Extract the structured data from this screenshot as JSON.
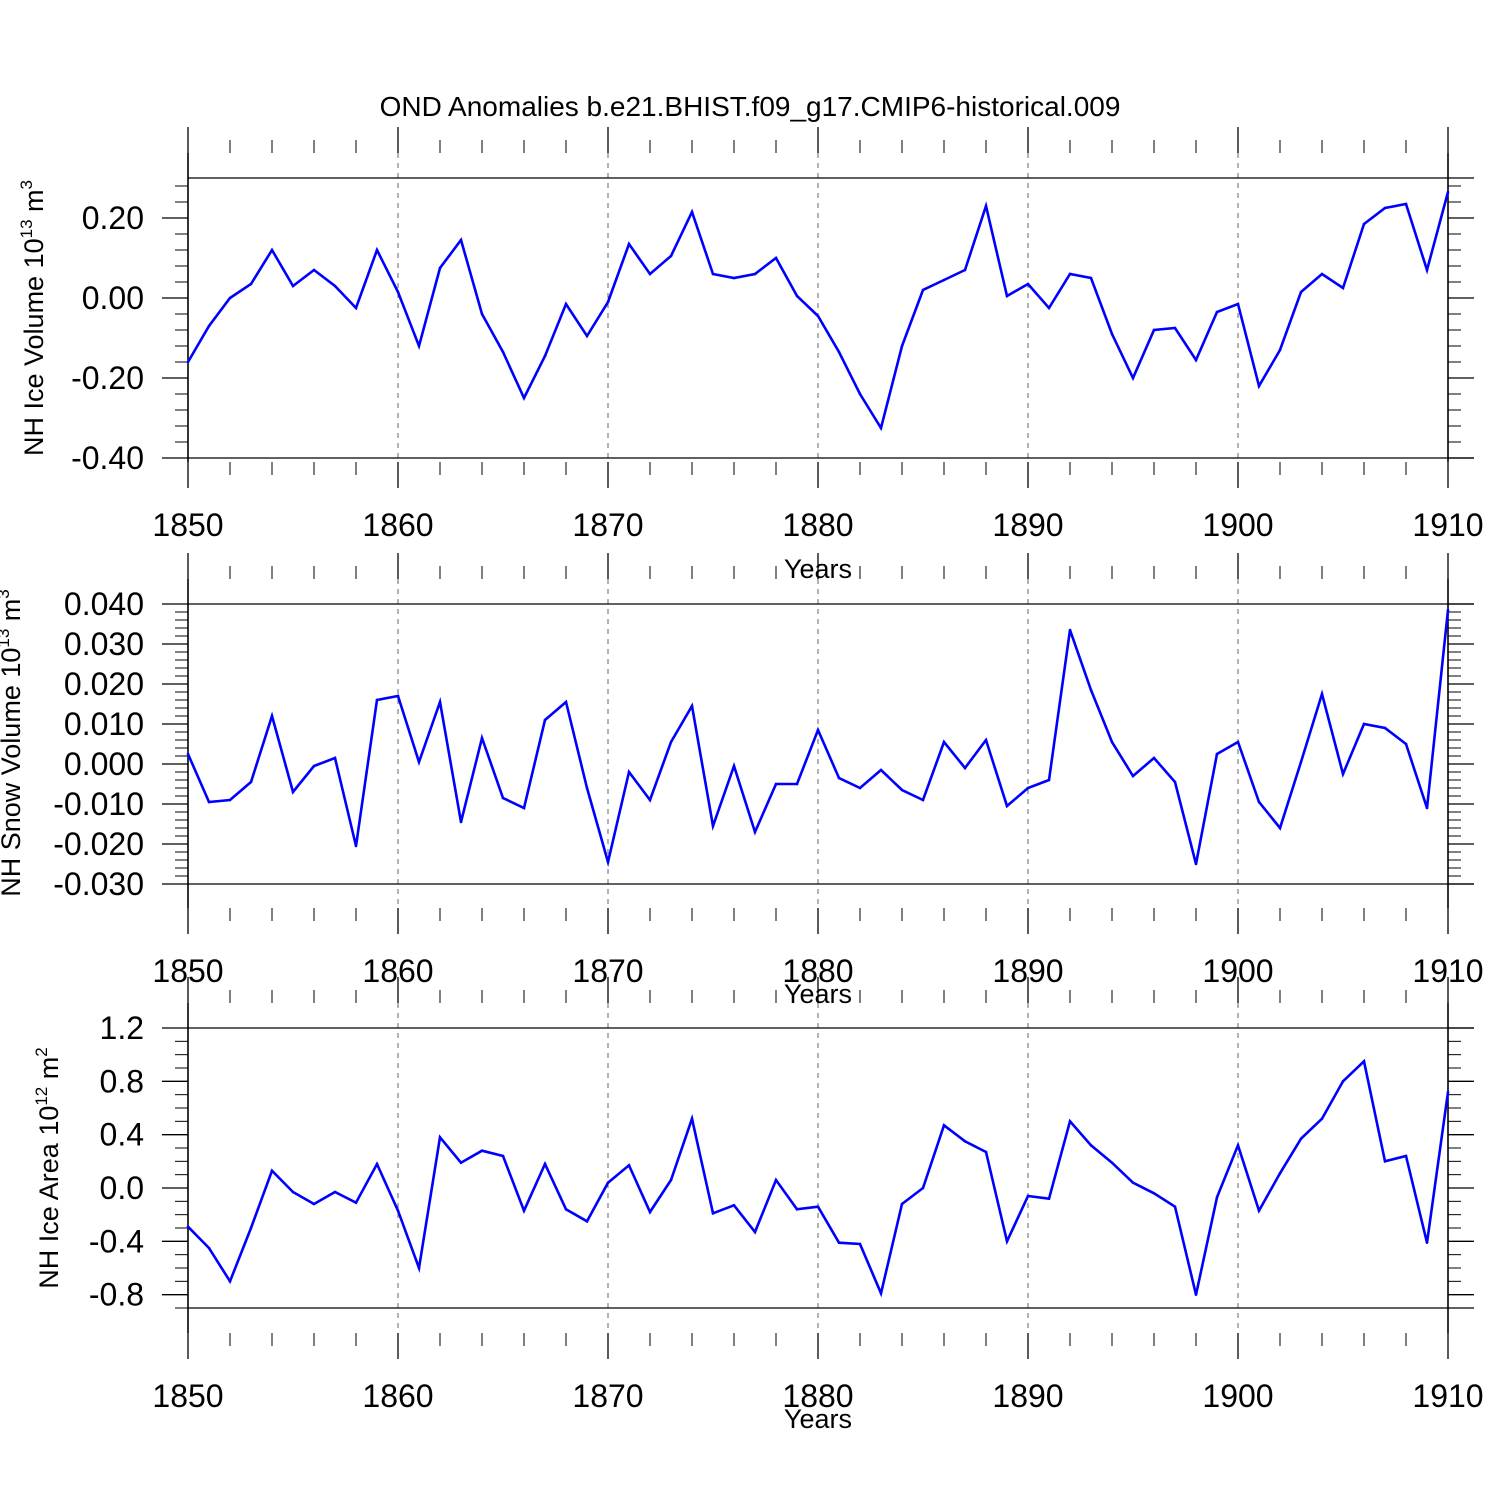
{
  "figure_title": "OND Anomalies b.e21.BHIST.f09_g17.CMIP6-historical.009",
  "colors": {
    "series": "#0000ff",
    "axis": "#000000",
    "grid": "#000000"
  },
  "chart_data": [
    {
      "type": "line",
      "ylabel": "NH Ice Volume 10",
      "ylabel_exp": "13",
      "ylabel_unit": " m",
      "ylabel_unit_exp": "3",
      "xlabel": "Years",
      "xlim": [
        1850,
        1910
      ],
      "ylim": [
        -0.4,
        0.3
      ],
      "x_ticks": [
        1850,
        1860,
        1870,
        1880,
        1890,
        1900,
        1910
      ],
      "x_tick_labels": [
        "1850",
        "1860",
        "1870",
        "1880",
        "1890",
        "1900",
        "1910"
      ],
      "y_ticks": [
        -0.4,
        -0.2,
        0.0,
        0.2
      ],
      "y_tick_labels": [
        "-0.40",
        "-0.20",
        "0.00",
        "0.20"
      ],
      "y_minor_step": 0.04,
      "x_start": 1850,
      "values": [
        -0.16,
        -0.07,
        0.0,
        0.035,
        0.12,
        0.03,
        0.07,
        0.03,
        -0.025,
        0.12,
        0.015,
        -0.12,
        0.075,
        0.145,
        -0.04,
        -0.135,
        -0.25,
        -0.145,
        -0.015,
        -0.095,
        -0.01,
        0.135,
        0.06,
        0.105,
        0.215,
        0.06,
        0.05,
        0.06,
        0.1,
        0.005,
        -0.045,
        -0.135,
        -0.24,
        -0.325,
        -0.12,
        0.02,
        0.045,
        0.07,
        0.23,
        0.005,
        0.035,
        -0.025,
        0.06,
        0.05,
        -0.09,
        -0.2,
        -0.08,
        -0.075,
        -0.155,
        -0.035,
        -0.015,
        -0.22,
        -0.13,
        0.015,
        0.06,
        0.025,
        0.185,
        0.225,
        0.235,
        0.07,
        0.265
      ]
    },
    {
      "type": "line",
      "ylabel": "NH Snow Volume 10",
      "ylabel_exp": "13",
      "ylabel_unit": " m",
      "ylabel_unit_exp": "3",
      "xlabel": "Years",
      "xlim": [
        1850,
        1910
      ],
      "ylim": [
        -0.03,
        0.04
      ],
      "x_ticks": [
        1850,
        1860,
        1870,
        1880,
        1890,
        1900,
        1910
      ],
      "x_tick_labels": [
        "1850",
        "1860",
        "1870",
        "1880",
        "1890",
        "1900",
        "1910"
      ],
      "y_ticks": [
        -0.03,
        -0.02,
        -0.01,
        0.0,
        0.01,
        0.02,
        0.03,
        0.04
      ],
      "y_tick_labels": [
        "-0.030",
        "-0.020",
        "-0.010",
        "0.000",
        "0.010",
        "0.020",
        "0.030",
        "0.040"
      ],
      "y_minor_step": 0.002,
      "x_start": 1850,
      "values": [
        0.0025,
        -0.0095,
        -0.009,
        -0.0045,
        0.012,
        -0.007,
        -0.0005,
        0.0015,
        -0.0205,
        0.016,
        0.017,
        0.0005,
        0.0155,
        -0.0145,
        0.0065,
        -0.0085,
        -0.011,
        0.011,
        0.0155,
        -0.006,
        -0.0245,
        -0.002,
        -0.009,
        0.0055,
        0.0145,
        -0.0155,
        -0.0005,
        -0.017,
        -0.005,
        -0.005,
        0.0085,
        -0.0035,
        -0.006,
        -0.0015,
        -0.0065,
        -0.009,
        0.0055,
        -0.001,
        0.006,
        -0.0105,
        -0.006,
        -0.004,
        0.0335,
        0.0185,
        0.0055,
        -0.003,
        0.0015,
        -0.0045,
        -0.025,
        0.0025,
        0.0055,
        -0.0095,
        -0.016,
        0.0005,
        0.0175,
        -0.0025,
        0.01,
        0.009,
        0.005,
        -0.011,
        0.0385
      ]
    },
    {
      "type": "line",
      "ylabel": "NH Ice Area 10",
      "ylabel_exp": "12",
      "ylabel_unit": " m",
      "ylabel_unit_exp": "2",
      "xlabel": "Years",
      "xlim": [
        1850,
        1910
      ],
      "ylim": [
        -0.9,
        1.2
      ],
      "x_ticks": [
        1850,
        1860,
        1870,
        1880,
        1890,
        1900,
        1910
      ],
      "x_tick_labels": [
        "1850",
        "1860",
        "1870",
        "1880",
        "1890",
        "1900",
        "1910"
      ],
      "y_ticks": [
        -0.8,
        -0.4,
        0.0,
        0.4,
        0.8,
        1.2
      ],
      "y_tick_labels": [
        "-0.8",
        "-0.4",
        "0.0",
        "0.4",
        "0.8",
        "1.2"
      ],
      "y_minor_step": 0.1,
      "x_start": 1850,
      "values": [
        -0.29,
        -0.45,
        -0.7,
        -0.3,
        0.13,
        -0.03,
        -0.12,
        -0.03,
        -0.11,
        0.18,
        -0.17,
        -0.6,
        0.38,
        0.19,
        0.28,
        0.24,
        -0.17,
        0.18,
        -0.16,
        -0.25,
        0.04,
        0.17,
        -0.18,
        0.06,
        0.52,
        -0.19,
        -0.13,
        -0.33,
        0.06,
        -0.16,
        -0.14,
        -0.41,
        -0.42,
        -0.79,
        -0.12,
        0.0,
        0.47,
        0.35,
        0.27,
        -0.4,
        -0.06,
        -0.08,
        0.5,
        0.32,
        0.19,
        0.04,
        -0.04,
        -0.14,
        -0.8,
        -0.07,
        0.32,
        -0.17,
        0.11,
        0.37,
        0.52,
        0.8,
        0.95,
        0.2,
        0.24,
        -0.41,
        0.72
      ]
    }
  ]
}
